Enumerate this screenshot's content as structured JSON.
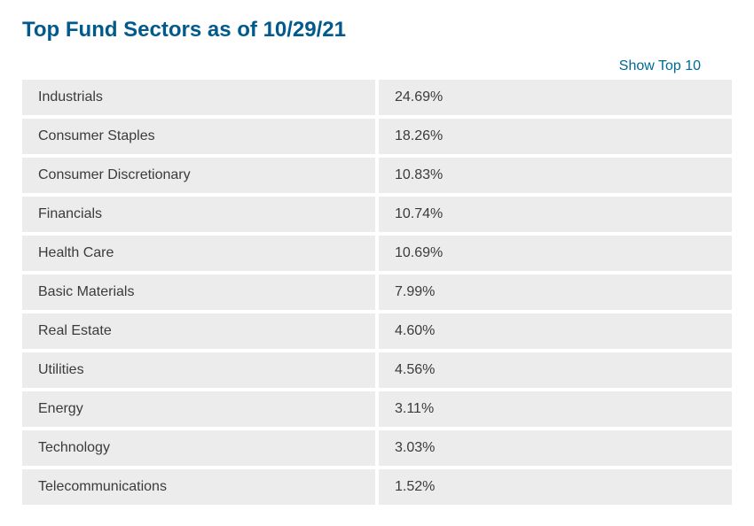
{
  "title": "Top Fund Sectors as of 10/29/21",
  "show_link": "Show Top 10",
  "colors": {
    "title_color": "#005a8c",
    "link_color": "#006a94",
    "row_bg": "#ececec",
    "text_color": "#3b3b3b",
    "gap_color": "#ffffff"
  },
  "table": {
    "rows": [
      {
        "sector": "Industrials",
        "pct": "24.69%"
      },
      {
        "sector": "Consumer Staples",
        "pct": "18.26%"
      },
      {
        "sector": "Consumer Discretionary",
        "pct": "10.83%"
      },
      {
        "sector": "Financials",
        "pct": "10.74%"
      },
      {
        "sector": "Health Care",
        "pct": "10.69%"
      },
      {
        "sector": "Basic Materials",
        "pct": "7.99%"
      },
      {
        "sector": "Real Estate",
        "pct": "4.60%"
      },
      {
        "sector": "Utilities",
        "pct": "4.56%"
      },
      {
        "sector": "Energy",
        "pct": "3.11%"
      },
      {
        "sector": "Technology",
        "pct": "3.03%"
      },
      {
        "sector": "Telecommunications",
        "pct": "1.52%"
      }
    ]
  }
}
